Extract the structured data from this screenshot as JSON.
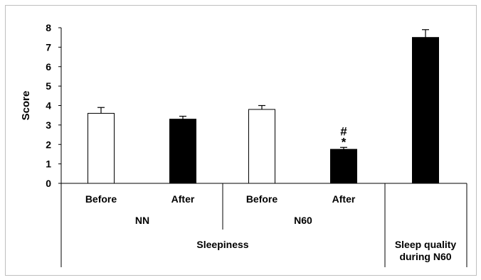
{
  "chart_data": {
    "type": "bar",
    "ylabel": "Score",
    "ylim": [
      0,
      8
    ],
    "yticks": [
      0,
      1,
      2,
      3,
      4,
      5,
      6,
      7,
      8
    ],
    "grid": false,
    "legend": "none",
    "bars": [
      {
        "label": "Before",
        "group": "NN",
        "section": "Sleepiness",
        "value": 3.6,
        "error": 0.3,
        "fill": "#ffffff"
      },
      {
        "label": "After",
        "group": "NN",
        "section": "Sleepiness",
        "value": 3.3,
        "error": 0.15,
        "fill": "#000000"
      },
      {
        "label": "Before",
        "group": "N60",
        "section": "Sleepiness",
        "value": 3.8,
        "error": 0.2,
        "fill": "#ffffff"
      },
      {
        "label": "After",
        "group": "N60",
        "section": "Sleepiness",
        "value": 1.75,
        "error": 0.1,
        "fill": "#000000",
        "annotation": [
          "#",
          "*"
        ]
      },
      {
        "label": "",
        "group": "",
        "section": "Sleep quality during N60",
        "value": 7.5,
        "error": 0.4,
        "fill": "#000000"
      }
    ],
    "groups": [
      "NN",
      "N60"
    ],
    "sections": [
      "Sleepiness",
      [
        "Sleep quality",
        "during N60"
      ]
    ]
  },
  "colors": {
    "stroke": "#000000",
    "frame": "#bfbfbf"
  }
}
